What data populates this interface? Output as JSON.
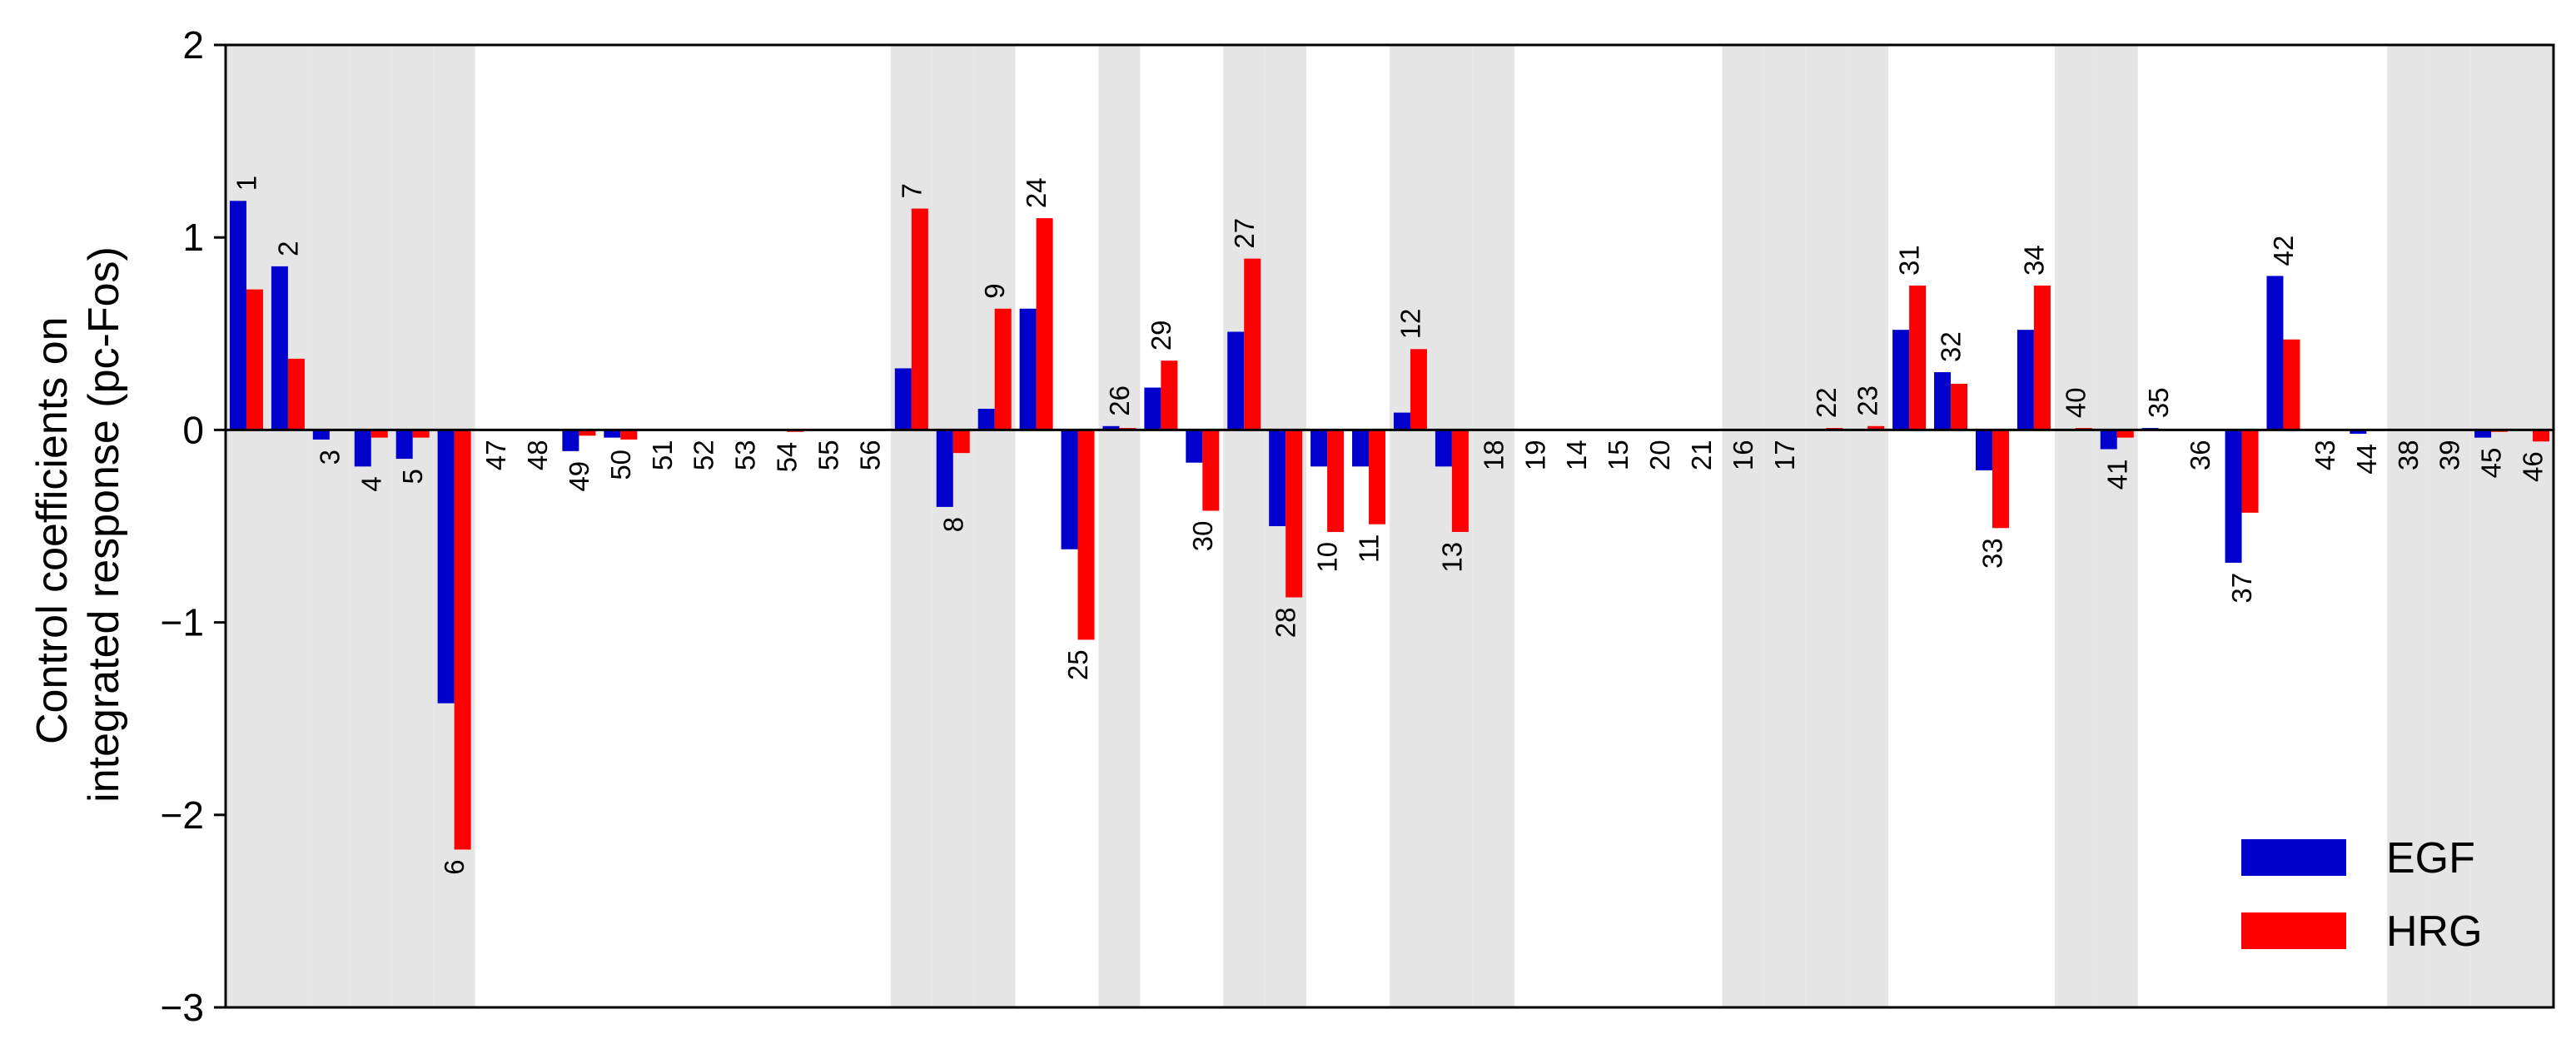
{
  "chart_data": {
    "type": "bar",
    "title": "",
    "xlabel": "",
    "ylabel_lines": [
      "Control coefficients on",
      "integrated response (pc-Fos)"
    ],
    "ylim": [
      -3,
      2
    ],
    "yticks": [
      2,
      1,
      0,
      -1,
      -2,
      -3
    ],
    "ytick_labels": [
      "2",
      "1",
      "0",
      "−1",
      "−2",
      "−3"
    ],
    "grid": false,
    "legend_position": "bottom-right",
    "colors": {
      "EGF": "#0000cc",
      "HRG": "#ff0000",
      "band": "#e5e5e5"
    },
    "shaded_groups": [
      0,
      1,
      2,
      3,
      4,
      5,
      16,
      17,
      18,
      21,
      24,
      25,
      28,
      29,
      30,
      36,
      37,
      38,
      39,
      44,
      45,
      52,
      53,
      54,
      55
    ],
    "categories": [
      "1",
      "2",
      "3",
      "4",
      "5",
      "6",
      "47",
      "48",
      "49",
      "50",
      "51",
      "52",
      "53",
      "54",
      "55",
      "56",
      "7",
      "8",
      "9",
      "24",
      "25",
      "26",
      "29",
      "30",
      "27",
      "28",
      "10",
      "11",
      "12",
      "13",
      "18",
      "19",
      "14",
      "15",
      "20",
      "21",
      "16",
      "17",
      "22",
      "23",
      "31",
      "32",
      "33",
      "34",
      "40",
      "41",
      "35",
      "36",
      "37",
      "42",
      "43",
      "44",
      "38",
      "39",
      "45",
      "46"
    ],
    "series": [
      {
        "name": "EGF",
        "values": [
          1.19,
          0.85,
          -0.05,
          -0.19,
          -0.15,
          -1.42,
          0,
          0,
          -0.11,
          -0.04,
          0,
          0,
          0,
          0,
          0,
          0,
          0.32,
          -0.4,
          0.11,
          0.63,
          -0.62,
          0.02,
          0.22,
          -0.17,
          0.51,
          -0.5,
          -0.19,
          -0.19,
          0.09,
          -0.19,
          0,
          0,
          0,
          0,
          0,
          0,
          0,
          0,
          0,
          0,
          0.52,
          0.3,
          -0.21,
          0.52,
          0,
          -0.1,
          0.01,
          0,
          -0.69,
          0.8,
          0,
          -0.02,
          0,
          0,
          -0.04,
          0
        ]
      },
      {
        "name": "HRG",
        "values": [
          0.73,
          0.37,
          0,
          -0.04,
          -0.04,
          -2.18,
          0,
          0,
          -0.03,
          -0.05,
          0,
          0,
          0,
          -0.01,
          0,
          0,
          1.15,
          -0.12,
          0.63,
          1.1,
          -1.09,
          0.01,
          0.36,
          -0.42,
          0.89,
          -0.87,
          -0.53,
          -0.49,
          0.42,
          -0.53,
          0,
          0,
          0,
          0,
          0,
          0,
          0,
          0,
          0.01,
          0.02,
          0.75,
          0.24,
          -0.51,
          0.75,
          0.01,
          -0.04,
          0,
          0,
          -0.43,
          0.47,
          0,
          0,
          0,
          0,
          -0.01,
          -0.06
        ]
      }
    ]
  }
}
